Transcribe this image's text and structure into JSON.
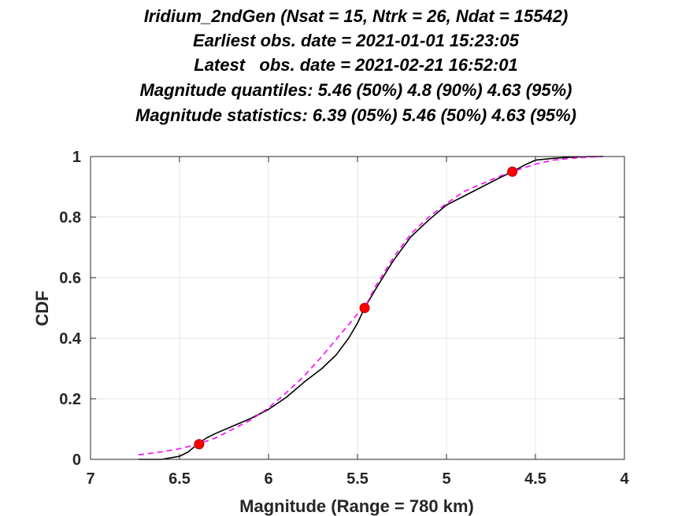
{
  "chart_data": {
    "type": "line",
    "title_lines": [
      "Iridium_2ndGen (Nsat = 15, Ntrk = 26, Ndat = 15542)",
      "Earliest obs. date = 2021-01-01 15:23:05",
      "Latest   obs. date = 2021-02-21 16:52:01",
      "Magnitude quantiles: 5.46 (50%) 4.8 (90%) 4.63 (95%)",
      "Magnitude statistics: 6.39 (05%) 5.46 (50%) 4.63 (95%)"
    ],
    "xlabel": "Magnitude (Range = 780 km)",
    "ylabel": "CDF",
    "xlim": [
      7,
      4
    ],
    "x_reversed": true,
    "ylim": [
      0,
      1
    ],
    "xticks": [
      7,
      6.5,
      6,
      5.5,
      5,
      4.5,
      4
    ],
    "xtick_labels": [
      "7",
      "6.5",
      "6",
      "5.5",
      "5",
      "4.5",
      "4"
    ],
    "yticks": [
      0,
      0.2,
      0.4,
      0.6,
      0.8,
      1
    ],
    "ytick_labels": [
      "0",
      "0.2",
      "0.4",
      "0.6",
      "0.8",
      "1"
    ],
    "grid": true,
    "series": [
      {
        "style": "solid",
        "color": "#000000",
        "x": [
          6.73,
          6.6,
          6.5,
          6.45,
          6.4,
          6.35,
          6.3,
          6.2,
          6.1,
          6.0,
          5.9,
          5.8,
          5.7,
          5.62,
          5.55,
          5.5,
          5.46,
          5.4,
          5.3,
          5.2,
          5.1,
          5.0,
          4.9,
          4.8,
          4.7,
          4.63,
          4.55,
          4.5,
          4.4,
          4.3,
          4.2,
          4.12
        ],
        "y": [
          0.0,
          0.0,
          0.01,
          0.025,
          0.05,
          0.07,
          0.085,
          0.11,
          0.135,
          0.165,
          0.205,
          0.255,
          0.3,
          0.345,
          0.4,
          0.45,
          0.5,
          0.56,
          0.655,
          0.735,
          0.79,
          0.84,
          0.87,
          0.9,
          0.93,
          0.95,
          0.975,
          0.988,
          0.994,
          0.998,
          1.0,
          1.0
        ]
      },
      {
        "style": "dashed",
        "color": "#ff00ff",
        "x": [
          6.73,
          6.6,
          6.5,
          6.4,
          6.3,
          6.2,
          6.1,
          6.0,
          5.9,
          5.8,
          5.7,
          5.6,
          5.5,
          5.46,
          5.4,
          5.3,
          5.2,
          5.1,
          5.0,
          4.9,
          4.8,
          4.7,
          4.63,
          4.5,
          4.4,
          4.3,
          4.2,
          4.12
        ],
        "y": [
          0.015,
          0.025,
          0.035,
          0.05,
          0.07,
          0.1,
          0.13,
          0.17,
          0.22,
          0.275,
          0.34,
          0.41,
          0.48,
          0.5,
          0.57,
          0.665,
          0.745,
          0.8,
          0.845,
          0.885,
          0.91,
          0.935,
          0.95,
          0.975,
          0.988,
          0.994,
          0.998,
          1.0
        ]
      }
    ],
    "markers": {
      "color": "#ff0000",
      "points": [
        {
          "x": 6.39,
          "y": 0.05
        },
        {
          "x": 5.46,
          "y": 0.5
        },
        {
          "x": 4.63,
          "y": 0.95
        }
      ]
    },
    "colors": {
      "grid": "#e5e5e5",
      "axis": "#262626",
      "cdf_line": "#000000",
      "model_line": "#ff00ff",
      "marker": "#ff0000"
    }
  }
}
